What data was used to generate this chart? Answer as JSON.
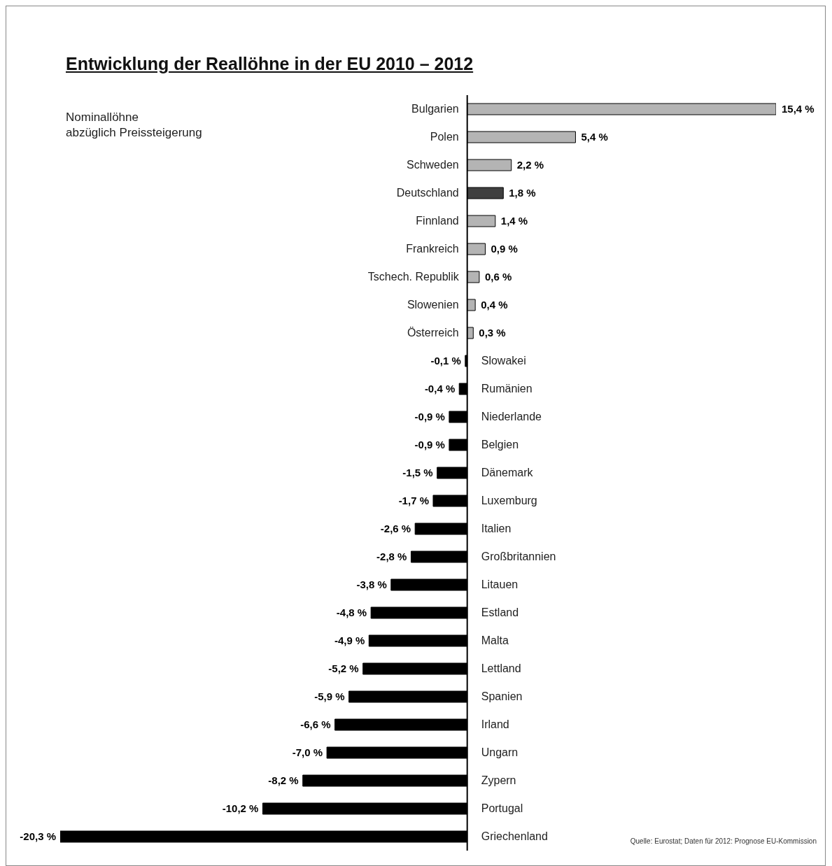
{
  "chart_data": {
    "type": "bar",
    "orientation": "horizontal",
    "title": "Entwicklung der Reallöhne in der EU 2010 – 2012",
    "subtitle": "Nominallöhne\nabzüglich Preissteigerung",
    "categories": [
      "Bulgarien",
      "Polen",
      "Schweden",
      "Deutschland",
      "Finnland",
      "Frankreich",
      "Tschech. Republik",
      "Slowenien",
      "Österreich",
      "Slowakei",
      "Rumänien",
      "Niederlande",
      "Belgien",
      "Dänemark",
      "Luxemburg",
      "Italien",
      "Großbritannien",
      "Litauen",
      "Estland",
      "Malta",
      "Lettland",
      "Spanien",
      "Irland",
      "Ungarn",
      "Zypern",
      "Portugal",
      "Griechenland"
    ],
    "values": [
      15.4,
      5.4,
      2.2,
      1.8,
      1.4,
      0.9,
      0.6,
      0.4,
      0.3,
      -0.1,
      -0.4,
      -0.9,
      -0.9,
      -1.5,
      -1.7,
      -2.6,
      -2.8,
      -3.8,
      -4.8,
      -4.9,
      -5.2,
      -5.9,
      -6.6,
      -7.0,
      -8.2,
      -10.2,
      -20.3
    ],
    "value_labels": [
      "15,4 %",
      "5,4 %",
      "2,2 %",
      "1,8 %",
      "1,4 %",
      "0,9 %",
      "0,6 %",
      "0,4 %",
      "0,3 %",
      "-0,1 %",
      "-0,4 %",
      "-0,9 %",
      "-0,9 %",
      "-1,5 %",
      "-1,7 %",
      "-2,6 %",
      "-2,8 %",
      "-3,8 %",
      "-4,8 %",
      "-4,9 %",
      "-5,2 %",
      "-5,9 %",
      "-6,6 %",
      "-7,0 %",
      "-8,2 %",
      "-10,2 %",
      "-20,3 %"
    ],
    "colors": [
      "#b4b4b4",
      "#b4b4b4",
      "#b4b4b4",
      "#404040",
      "#b4b4b4",
      "#b4b4b4",
      "#b4b4b4",
      "#b4b4b4",
      "#b4b4b4",
      "#000000",
      "#000000",
      "#000000",
      "#000000",
      "#000000",
      "#000000",
      "#000000",
      "#000000",
      "#000000",
      "#000000",
      "#000000",
      "#000000",
      "#000000",
      "#000000",
      "#000000",
      "#000000",
      "#000000",
      "#000000"
    ],
    "annotations": [
      "Quelle: Eurostat; Daten für 2012: Prognose EU-Kommission"
    ],
    "grid": false,
    "legend": false
  }
}
